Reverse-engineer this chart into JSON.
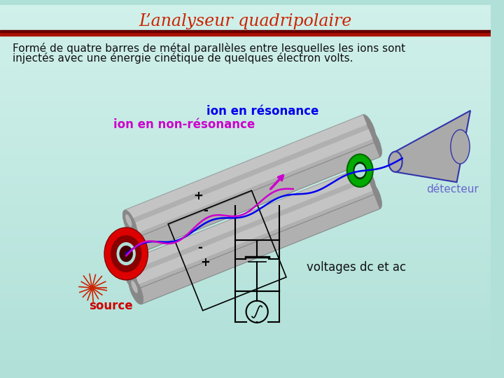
{
  "title": "L’analyseur quadripolaire",
  "title_color": "#cc2200",
  "subtitle_line1": "Formé de quatre barres de métal parallèles entre lesquelles les ions sont",
  "subtitle_line2": "injectés avec une énergie cinétique de quelques électron volts.",
  "subtitle_color": "#111111",
  "bg_color": "#b0e0d8",
  "bg_color2": "#d0f0ea",
  "separator_color": "#aa1100",
  "label_ion_resonance": "ion en résonance",
  "label_ion_nonresonance": "ion en non-résonance",
  "label_detecteur": "détecteur",
  "label_source": "source",
  "label_voltages": "voltages dc et ac",
  "color_resonance": "#0000ee",
  "color_nonresonance": "#cc00cc",
  "color_detecteur": "#6666cc",
  "color_source": "#cc0000",
  "color_voltages": "#111111",
  "rod_fill": "#b0b0b0",
  "rod_dark": "#888888",
  "rod_light": "#d8d8d8",
  "source_red": "#dd0000",
  "green_ring": "#00aa00",
  "title_fontsize": 17,
  "subtitle_fontsize": 11,
  "label_fontsize": 11
}
